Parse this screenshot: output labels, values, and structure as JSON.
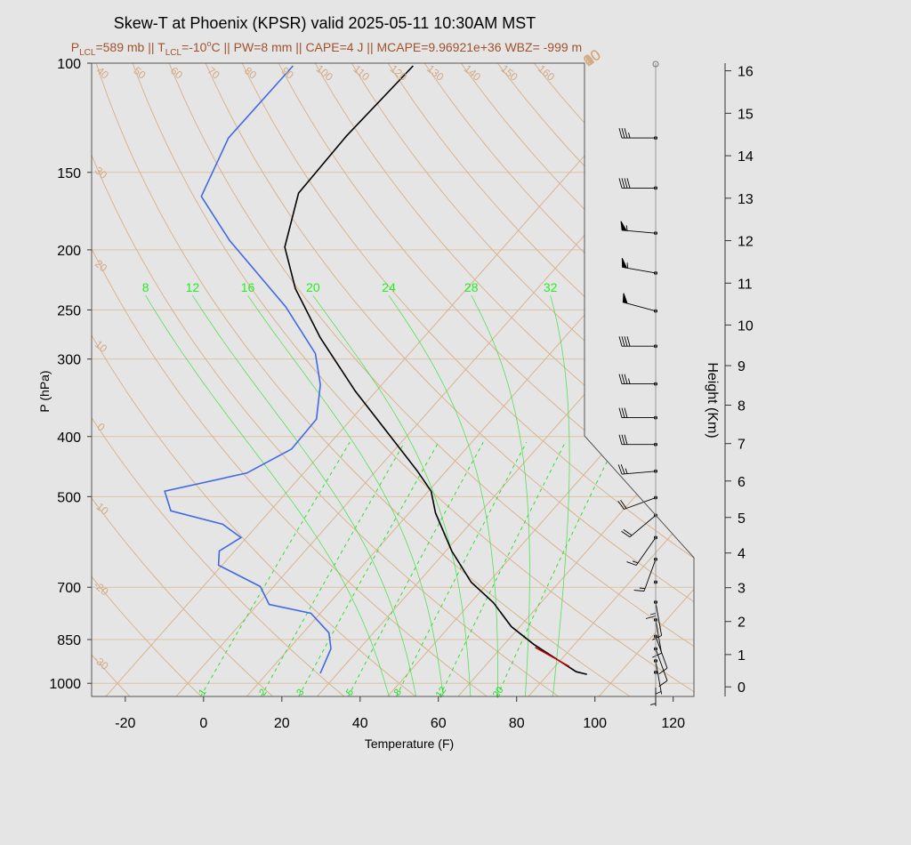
{
  "chart_data": {
    "type": "skewt",
    "title": "Skew-T at Phoenix (KPSR) valid 2025-05-11 10:30AM MST",
    "subtitle": [
      "P",
      "LCL",
      "=589 mb || T",
      "LCL",
      "=-10",
      "o",
      "C || PW=8 mm || CAPE=4 J || MCAPE=9.96921e+36 WBZ= -999 m"
    ],
    "xlabel": "Temperature (F)",
    "ylabel": "P (hPa)",
    "y2label": "Height (Km)",
    "xlim": [
      -28.6,
      125.3
    ],
    "xticks": [
      -20,
      0,
      20,
      40,
      60,
      80,
      100,
      120
    ],
    "ylim": [
      1050,
      100
    ],
    "log_y": true,
    "yticks": [
      100,
      150,
      200,
      250,
      300,
      400,
      500,
      700,
      850,
      1000
    ],
    "y2ticks": [
      0,
      1,
      2,
      3,
      4,
      5,
      6,
      7,
      8,
      9,
      10,
      11,
      12,
      13,
      14,
      15,
      16
    ],
    "series": [
      {
        "color": "#000000",
        "pressure": [
          967,
          958,
          865,
          810,
          741,
          687,
          612,
          531,
          490,
          455,
          385,
          338,
          277,
          231,
          198,
          162,
          131,
          101
        ],
        "values": [
          95.9,
          92.6,
          75.5,
          65.8,
          55.8,
          45.5,
          33.5,
          20.7,
          14.7,
          6.7,
          -12.4,
          -27.3,
          -48.4,
          -65.8,
          -77.9,
          -86.6,
          -87.3,
          -86.1
        ]
      },
      {
        "color": "#4169e1",
        "pressure": [
          964,
          879,
          829,
          771,
          746,
          698,
          645,
          612,
          582,
          554,
          527,
          490,
          458,
          419,
          375,
          330,
          294,
          247,
          193,
          164,
          132,
          101
        ],
        "values": [
          27.6,
          24.7,
          20.6,
          11.6,
          -1.1,
          -7.4,
          -22.9,
          -25.9,
          -23.4,
          -31.1,
          -47.4,
          -53.4,
          -36.5,
          -30.5,
          -30.9,
          -37.7,
          -46,
          -64.2,
          -93.6,
          -110.7,
          -117,
          -116.8
        ]
      },
      {
        "color": "#cc0000",
        "pressure": [
          939,
          875
        ],
        "values": [
          89.6,
          76.6
        ]
      }
    ],
    "dry_adiabats": {
      "color": "#d9b48f",
      "values": [
        -30,
        -20,
        -10,
        0,
        10,
        20,
        30,
        40,
        50,
        60,
        70,
        80,
        90,
        100,
        110,
        120,
        130,
        140,
        150,
        160
      ]
    },
    "isotherms": {
      "color": "#d9b48f",
      "values": [
        {
          "value": -30,
          "label": "30"
        },
        {
          "value": -20,
          "label": "20"
        },
        {
          "value": -10,
          "label": "10"
        },
        0,
        10,
        20,
        30,
        40
      ]
    },
    "mixing_ratio": {
      "color": "#33dd33",
      "values": [
        1,
        2,
        3,
        5,
        8,
        12,
        20
      ]
    },
    "moist_adiabats": {
      "color": "#33dd33",
      "values": [
        8,
        12,
        16,
        20,
        24,
        28,
        32
      ]
    },
    "winds": {
      "pressure": [
        132,
        159,
        188,
        218,
        251,
        286,
        329,
        373,
        412,
        455,
        502,
        536,
        582,
        631,
        687,
        740,
        790,
        840,
        880,
        920,
        960
      ],
      "direction": [
        270,
        270,
        275,
        280,
        285,
        270,
        270,
        270,
        270,
        265,
        250,
        230,
        215,
        200,
        180,
        170,
        170,
        160,
        160,
        170,
        180
      ],
      "speed": [
        35,
        40,
        55,
        55,
        50,
        40,
        35,
        30,
        30,
        25,
        20,
        20,
        15,
        15,
        15,
        10,
        10,
        10,
        10,
        5,
        5
      ]
    }
  }
}
